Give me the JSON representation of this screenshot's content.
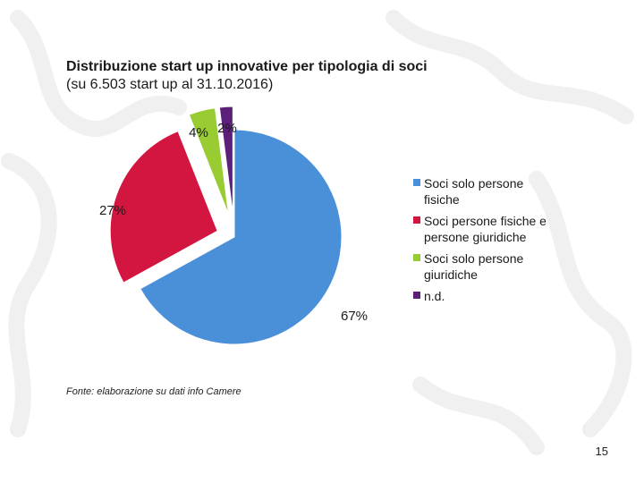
{
  "title": {
    "line1": "Distribuzione start up innovative per tipologia di soci",
    "line2": "(su 6.503 start up al 31.10.2016)"
  },
  "chart_data": {
    "type": "pie",
    "title": "Distribuzione start up innovative per tipologia di soci",
    "subtitle": "(su 6.503 start up al 31.10.2016)",
    "categories": [
      "Soci solo persone fisiche",
      "Soci persone fisiche e persone giuridiche",
      "Soci solo persone giuridiche",
      "n.d."
    ],
    "values": [
      67,
      27,
      4,
      2
    ],
    "labels": [
      "67%",
      "27%",
      "4%",
      "2%"
    ],
    "colors": [
      "#4a90d9",
      "#d3163f",
      "#99cc33",
      "#5c1f7a"
    ],
    "exploded": true,
    "legend_position": "right"
  },
  "legend": {
    "items": [
      {
        "line1": "Soci solo persone",
        "line2": "fisiche"
      },
      {
        "line1": "Soci persone fisiche e",
        "line2": "persone giuridiche"
      },
      {
        "line1": "Soci solo persone",
        "line2": "giuridiche"
      },
      {
        "line1": "n.d.",
        "line2": ""
      }
    ]
  },
  "footer": {
    "source": "Fonte: elaborazione su dati info Camere",
    "page_number": "15"
  }
}
